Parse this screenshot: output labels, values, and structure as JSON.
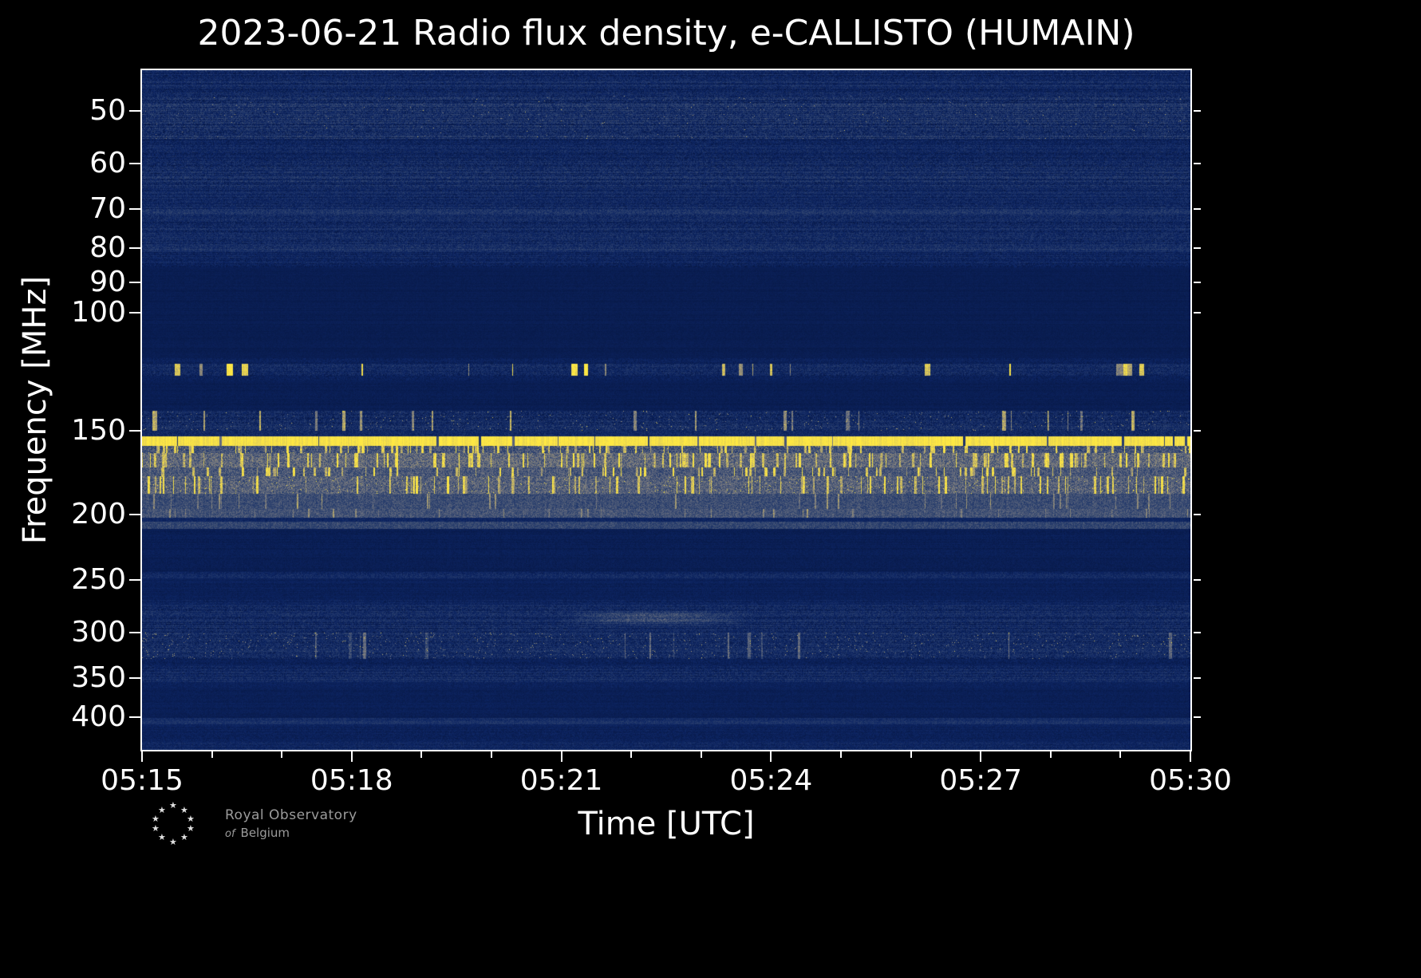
{
  "chart_data": {
    "type": "heatmap",
    "title": "2023-06-21 Radio flux density, e-CALLISTO (HUMAIN)",
    "xlabel": "Time [UTC]",
    "ylabel": "Frequency [MHz]",
    "x_range_utc": [
      "05:15",
      "05:30"
    ],
    "x_total_minutes": 15,
    "x_major_every_min": 3,
    "x_minor_every_min": 1,
    "x_tick_labels": [
      "05:15",
      "05:18",
      "05:21",
      "05:24",
      "05:27",
      "05:30"
    ],
    "y_scale": "log",
    "y_axis_inverted_low_freq_on_top": true,
    "y_range_mhz": [
      43.5,
      448
    ],
    "y_tick_labels": [
      50,
      60,
      70,
      80,
      90,
      100,
      150,
      200,
      250,
      300,
      350,
      400
    ],
    "grid": false,
    "legend": "none",
    "colormap_stops": [
      [
        0.0,
        "#071845"
      ],
      [
        0.12,
        "#0d2563"
      ],
      [
        0.3,
        "#31456f"
      ],
      [
        0.5,
        "#6e7280"
      ],
      [
        0.7,
        "#ab9f72"
      ],
      [
        0.85,
        "#dcc957"
      ],
      [
        1.0,
        "#ffe944"
      ]
    ],
    "background_level": 0.06,
    "noise_seed": 42,
    "solid_rfi_line_mhz": 155,
    "bands": [
      {
        "f1": 43.5,
        "f2": 47.5,
        "base": 0.13,
        "noise": 0.1,
        "rj": 0.5
      },
      {
        "f1": 47.5,
        "f2": 55,
        "base": 0.17,
        "noise": 0.13,
        "rj": 0.55,
        "sp": 0.004,
        "spA": 0.5
      },
      {
        "f1": 55,
        "f2": 59,
        "base": 0.12,
        "noise": 0.09,
        "rj": 0.5
      },
      {
        "f1": 59,
        "f2": 65,
        "base": 0.15,
        "noise": 0.11,
        "rj": 0.5
      },
      {
        "f1": 65,
        "f2": 70,
        "base": 0.12,
        "noise": 0.09,
        "rj": 0.5
      },
      {
        "f1": 70,
        "f2": 71.5,
        "base": 0.2,
        "noise": 0.1,
        "rj": 0.3
      },
      {
        "f1": 71.5,
        "f2": 79,
        "base": 0.13,
        "noise": 0.1,
        "rj": 0.5
      },
      {
        "f1": 79,
        "f2": 81,
        "base": 0.19,
        "noise": 0.1,
        "rj": 0.3
      },
      {
        "f1": 81,
        "f2": 85.5,
        "base": 0.11,
        "noise": 0.08,
        "rj": 0.5
      },
      {
        "f1": 85.5,
        "f2": 117,
        "base": 0.05,
        "noise": 0.025,
        "rj": 0.3
      },
      {
        "f1": 117,
        "f2": 119,
        "base": 0.08,
        "noise": 0.06,
        "rj": 0.3
      },
      {
        "f1": 119,
        "f2": 124,
        "base": 0.13,
        "noise": 0.1,
        "rj": 0.3,
        "sd": 0.1,
        "sa": 0.75,
        "sr": 8
      },
      {
        "f1": 124,
        "f2": 126,
        "base": 0.08,
        "noise": 0.06
      },
      {
        "f1": 126,
        "f2": 140,
        "base": 0.055,
        "noise": 0.03,
        "rj": 0.3
      },
      {
        "f1": 140,
        "f2": 150,
        "base": 0.15,
        "noise": 0.12,
        "rj": 0.3,
        "sd": 0.08,
        "sa": 0.6,
        "sr": 6,
        "sp": 0.01,
        "spA": 0.6
      },
      {
        "f1": 150,
        "f2": 153,
        "base": 0.13,
        "noise": 0.09
      },
      {
        "f1": 153,
        "f2": 158,
        "base": 0.97,
        "noise": 0.04,
        "gd": 0.05
      },
      {
        "f1": 158,
        "f2": 162,
        "base": 0.36,
        "noise": 0.16,
        "sd": 0.16,
        "sa": 0.55,
        "sr": 3,
        "sp": 0.01,
        "spA": 0.5
      },
      {
        "f1": 162,
        "f2": 170,
        "base": 0.46,
        "noise": 0.18,
        "sd": 0.2,
        "sa": 0.5,
        "sr": 3
      },
      {
        "f1": 170,
        "f2": 175,
        "base": 0.38,
        "noise": 0.14,
        "sd": 0.14,
        "sa": 0.55,
        "sr": 3
      },
      {
        "f1": 175,
        "f2": 186,
        "base": 0.42,
        "noise": 0.16,
        "sd": 0.12,
        "sa": 0.5,
        "sr": 3,
        "sp": 0.015,
        "spA": 0.6
      },
      {
        "f1": 186,
        "f2": 196,
        "base": 0.33,
        "noise": 0.11,
        "sd": 0.05,
        "sa": 0.3,
        "sr": 2
      },
      {
        "f1": 196,
        "f2": 202,
        "base": 0.36,
        "noise": 0.11,
        "sd": 0.04,
        "sa": 0.25,
        "sr": 2
      },
      {
        "f1": 202,
        "f2": 205,
        "base": 0.12,
        "noise": 0.06
      },
      {
        "f1": 205,
        "f2": 210,
        "base": 0.3,
        "noise": 0.1
      },
      {
        "f1": 210,
        "f2": 243,
        "base": 0.06,
        "noise": 0.035,
        "rj": 0.3
      },
      {
        "f1": 243,
        "f2": 249,
        "base": 0.14,
        "noise": 0.08,
        "rj": 0.3
      },
      {
        "f1": 249,
        "f2": 268,
        "base": 0.075,
        "noise": 0.04,
        "rj": 0.3
      },
      {
        "f1": 268,
        "f2": 273,
        "base": 0.11,
        "noise": 0.07,
        "rj": 0.3
      },
      {
        "f1": 273,
        "f2": 300,
        "base": 0.14,
        "noise": 0.1,
        "rj": 0.45
      },
      {
        "f1": 300,
        "f2": 328,
        "base": 0.15,
        "noise": 0.11,
        "rj": 0.35,
        "sp": 0.018,
        "spA": 0.55,
        "sd": 0.03,
        "sa": 0.3,
        "sr": 4
      },
      {
        "f1": 328,
        "f2": 336,
        "base": 0.09,
        "noise": 0.06,
        "rj": 0.3
      },
      {
        "f1": 336,
        "f2": 355,
        "base": 0.13,
        "noise": 0.09,
        "rj": 0.4
      },
      {
        "f1": 355,
        "f2": 362,
        "base": 0.09,
        "noise": 0.05
      },
      {
        "f1": 362,
        "f2": 398,
        "base": 0.065,
        "noise": 0.035,
        "rj": 0.3
      },
      {
        "f1": 398,
        "f2": 402,
        "base": 0.055,
        "noise": 0.03
      },
      {
        "f1": 402,
        "f2": 410,
        "base": 0.17,
        "noise": 0.07,
        "rj": 0.25
      },
      {
        "f1": 410,
        "f2": 436,
        "base": 0.085,
        "noise": 0.05,
        "rj": 0.3
      },
      {
        "f1": 436,
        "f2": 448,
        "base": 0.12,
        "noise": 0.07,
        "rj": 0.3
      }
    ],
    "blobs": [
      {
        "f1": 277,
        "f2": 293,
        "t1": 0.4,
        "t2": 0.58,
        "amp": 0.2
      }
    ]
  },
  "logo": {
    "line1": "Royal Observatory",
    "line2_prefix": "of",
    "line2_rest": "Belgium",
    "star": "★",
    "star_count": 10
  }
}
